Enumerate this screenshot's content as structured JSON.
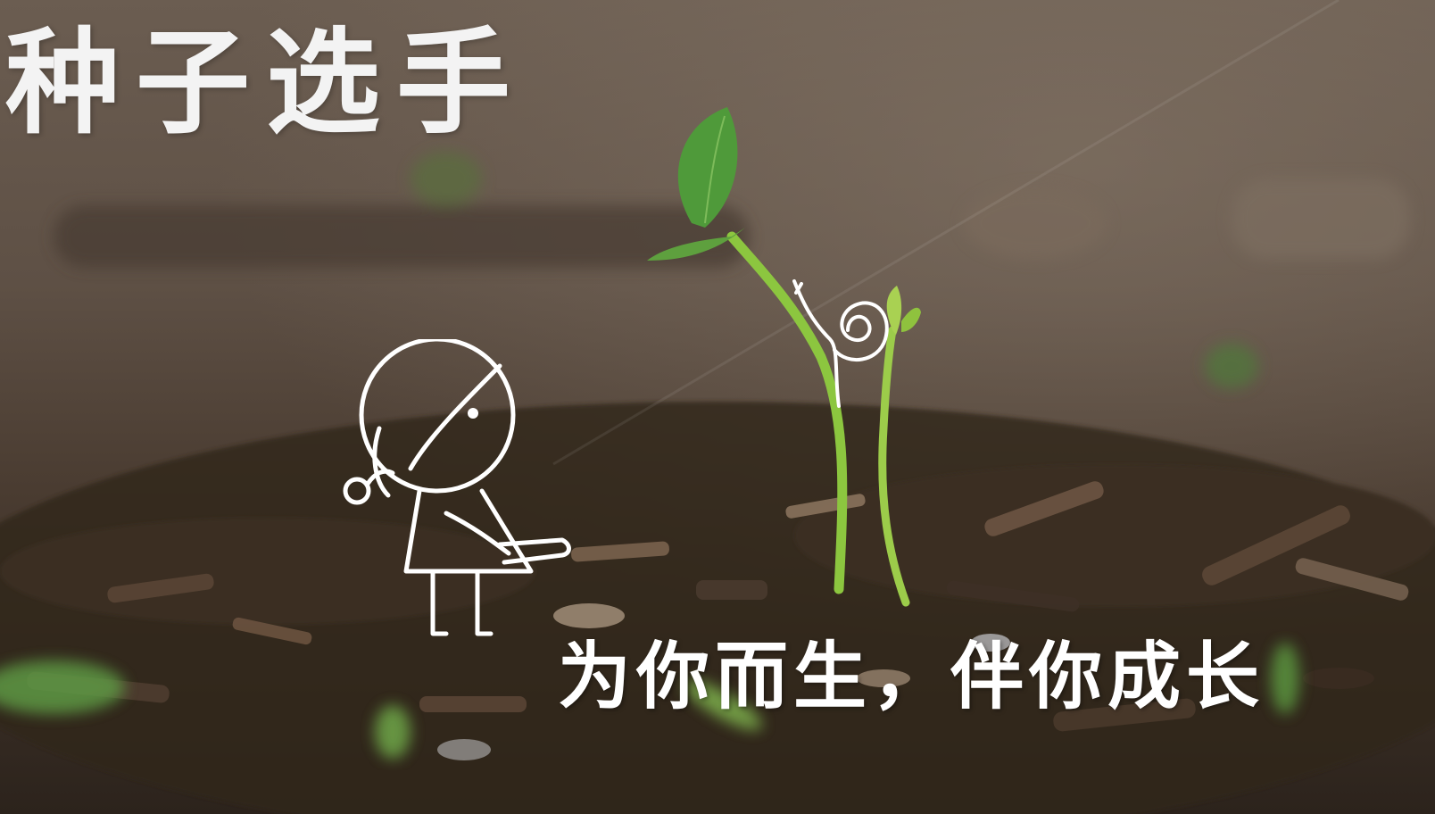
{
  "banner": {
    "title": "种子选手",
    "slogan": "为你而生，伴你成长"
  },
  "illustrations": {
    "background": "soil-with-seedlings-photo",
    "character": "stick-figure-child-doodle",
    "snail": "spiral-snail-doodle"
  },
  "colors": {
    "title_text": "#f3f3f3",
    "slogan_text": "#ffffff",
    "soil": "#4a3f36",
    "sprout_green": "#8cc63f",
    "leaf_green": "#4f9a3a"
  }
}
